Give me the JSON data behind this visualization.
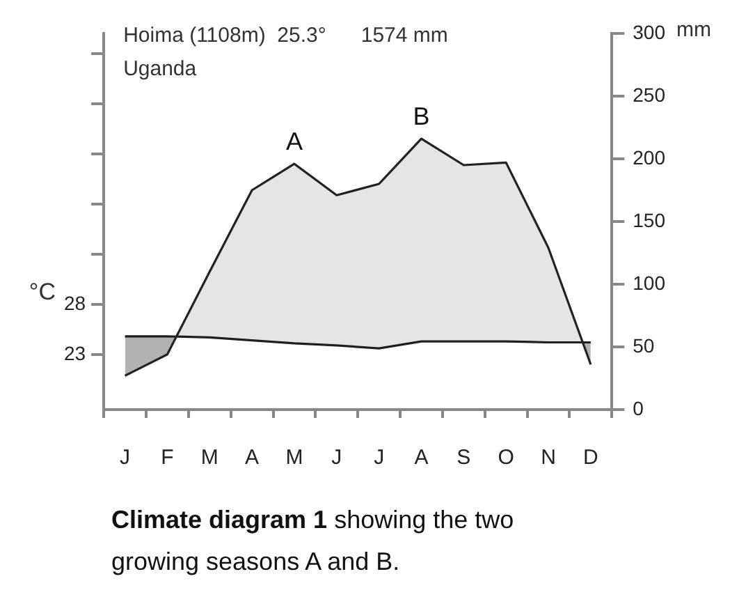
{
  "chart_data": {
    "type": "line",
    "title": "Hoima (1108m)  25.3°      1574 mm",
    "subtitle": "Uganda",
    "ylabel": "mm",
    "y2label": "°C",
    "categories": [
      "J",
      "F",
      "M",
      "A",
      "M",
      "J",
      "J",
      "A",
      "S",
      "O",
      "N",
      "D"
    ],
    "ylim": [
      0,
      300
    ],
    "yticks": [
      0,
      50,
      100,
      150,
      200,
      250,
      300
    ],
    "y2lim": [
      17.5,
      55
    ],
    "y2ticks": [
      23,
      28,
      {
        "value": 33,
        "label": null
      },
      {
        "value": 38,
        "label": null
      },
      {
        "value": 43,
        "label": null
      },
      {
        "value": 48,
        "label": null
      },
      {
        "value": 53,
        "label": null
      }
    ],
    "series": [
      {
        "color": "#222222",
        "values": [
          27,
          44,
          110,
          175,
          196,
          171,
          180,
          216,
          195,
          197,
          129,
          36
        ]
      },
      {
        "color": "#222222",
        "axis": "y2",
        "values": [
          24.8,
          24.8,
          24.7,
          24.4,
          24.1,
          23.9,
          23.6,
          24.3,
          24.3,
          24.3,
          24.2,
          24.2
        ]
      }
    ],
    "annotations": [
      "A",
      "B",
      "Climate diagram 1",
      " showing the two growing seasons A and B."
    ],
    "grid": false,
    "legend": false,
    "marker": "none",
    "line_style": "solid"
  }
}
